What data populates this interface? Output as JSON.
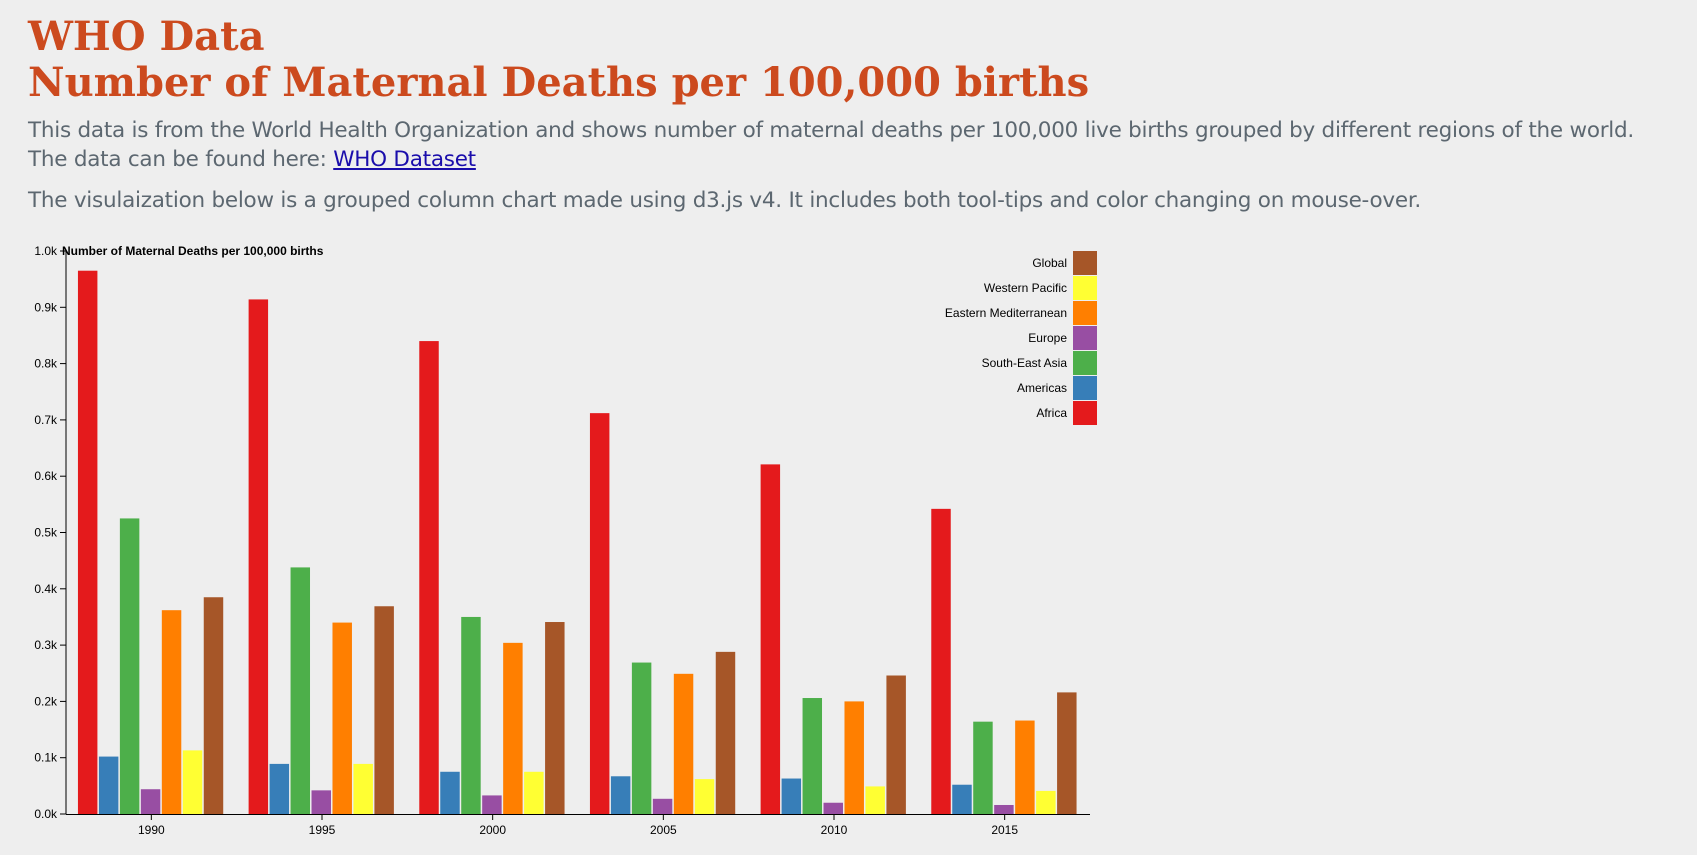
{
  "header": {
    "title_line1": "WHO Data",
    "title_line2": "Number of Maternal Deaths per 100,000 births"
  },
  "intro": {
    "line1": "This data is from the World Health Organization and shows number of maternal deaths per 100,000 live births grouped by different regions of the world.",
    "line2_prefix": "The data can be found here: ",
    "link_text": "WHO Dataset",
    "paragraph2": "The visulaization below is a grouped column chart made using d3.js v4. It includes both tool-tips and color changing on mouse-over."
  },
  "chart_data": {
    "type": "bar",
    "title": "",
    "ylabel": "Number of Maternal Deaths per 100,000 births",
    "xlabel": "",
    "categories": [
      "1990",
      "1995",
      "2000",
      "2005",
      "2010",
      "2015"
    ],
    "ylim": [
      0,
      1000
    ],
    "yticks": [
      0,
      100,
      200,
      300,
      400,
      500,
      600,
      700,
      800,
      900,
      1000
    ],
    "ytick_labels": [
      "0.0k",
      "0.1k",
      "0.2k",
      "0.3k",
      "0.4k",
      "0.5k",
      "0.6k",
      "0.7k",
      "0.8k",
      "0.9k",
      "1.0k"
    ],
    "grid": false,
    "legend_position": "top-right",
    "series": [
      {
        "name": "Africa",
        "color": "#e41a1c",
        "values": [
          965,
          914,
          840,
          712,
          621,
          542
        ]
      },
      {
        "name": "Americas",
        "color": "#377eb8",
        "values": [
          102,
          89,
          75,
          67,
          63,
          52
        ]
      },
      {
        "name": "South-East Asia",
        "color": "#4daf4a",
        "values": [
          525,
          438,
          350,
          269,
          206,
          164
        ]
      },
      {
        "name": "Europe",
        "color": "#984ea3",
        "values": [
          44,
          42,
          33,
          27,
          20,
          16
        ]
      },
      {
        "name": "Eastern Mediterranean",
        "color": "#ff7f00",
        "values": [
          362,
          340,
          304,
          249,
          200,
          166
        ]
      },
      {
        "name": "Western Pacific",
        "color": "#ffff33",
        "values": [
          113,
          89,
          75,
          62,
          49,
          41
        ]
      },
      {
        "name": "Global",
        "color": "#a65628",
        "values": [
          385,
          369,
          341,
          288,
          246,
          216
        ]
      }
    ],
    "legend_order": [
      "Global",
      "Western Pacific",
      "Eastern Mediterranean",
      "Europe",
      "South-East Asia",
      "Americas",
      "Africa"
    ]
  },
  "colors": {
    "heading": "#cc4a1e",
    "body_text": "#5c6770",
    "link": "#1a0dab",
    "background": "#eeeeee"
  }
}
